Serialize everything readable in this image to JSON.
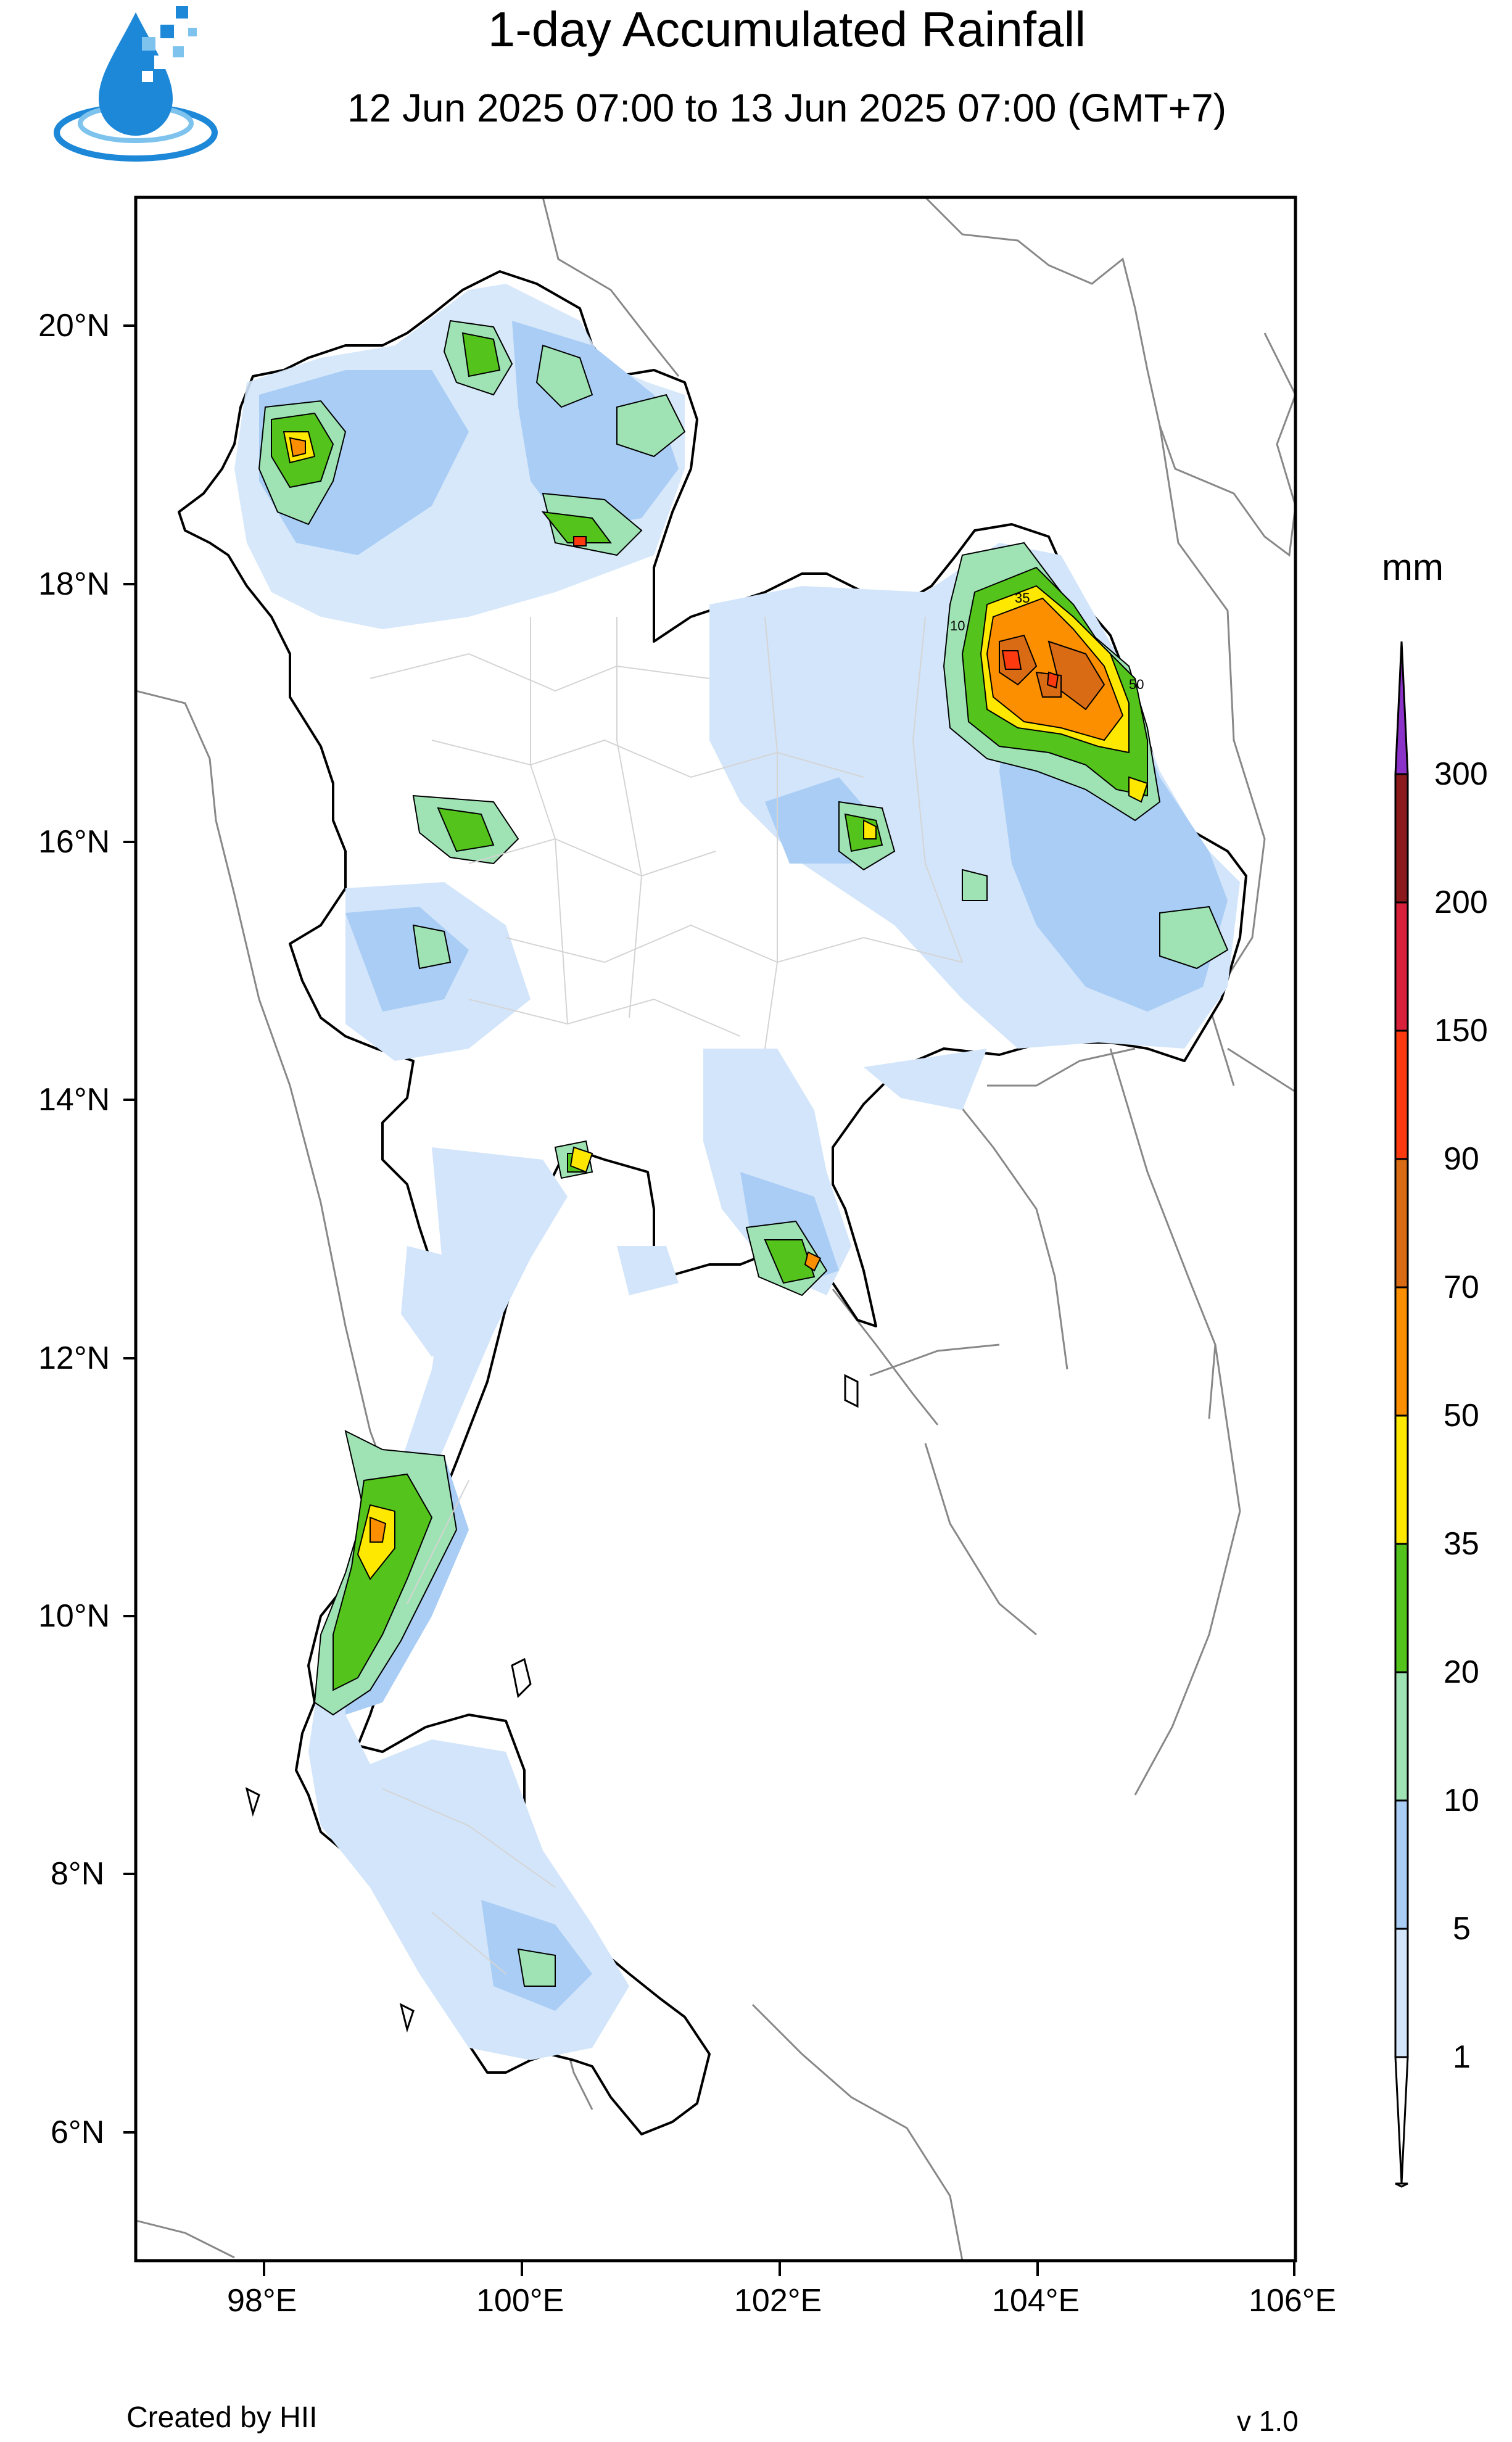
{
  "header": {
    "title": "1-day Accumulated Rainfall",
    "subtitle": "12 Jun 2025 07:00 to 13 Jun 2025 07:00 (GMT+7)"
  },
  "logo": {
    "name": "HII water-drop logo",
    "colors": [
      "#1e88d8",
      "#7ec3ee"
    ]
  },
  "map": {
    "lat_range": [
      5.0,
      21.0
    ],
    "lon_range": [
      97.0,
      106.0
    ],
    "lat_ticks": [
      "20°N",
      "18°N",
      "16°N",
      "14°N",
      "12°N",
      "10°N",
      "8°N",
      "6°N"
    ],
    "lon_ticks": [
      "98°E",
      "100°E",
      "102°E",
      "104°E",
      "106°E"
    ],
    "contour_labels": [
      "10",
      "35",
      "50"
    ]
  },
  "legend": {
    "unit": "mm",
    "levels": [
      "1",
      "5",
      "10",
      "20",
      "35",
      "50",
      "70",
      "90",
      "150",
      "200",
      "300"
    ],
    "colors": [
      "#ffffff",
      "#d3e5fa",
      "#a9cdf5",
      "#9fe3b4",
      "#54c31b",
      "#fee800",
      "#fb8f00",
      "#d86b13",
      "#fd3a0f",
      "#d8203a",
      "#8c1a1c",
      "#8b32c8"
    ]
  },
  "footer": {
    "credit": "Created by HII",
    "version": "v 1.0"
  }
}
